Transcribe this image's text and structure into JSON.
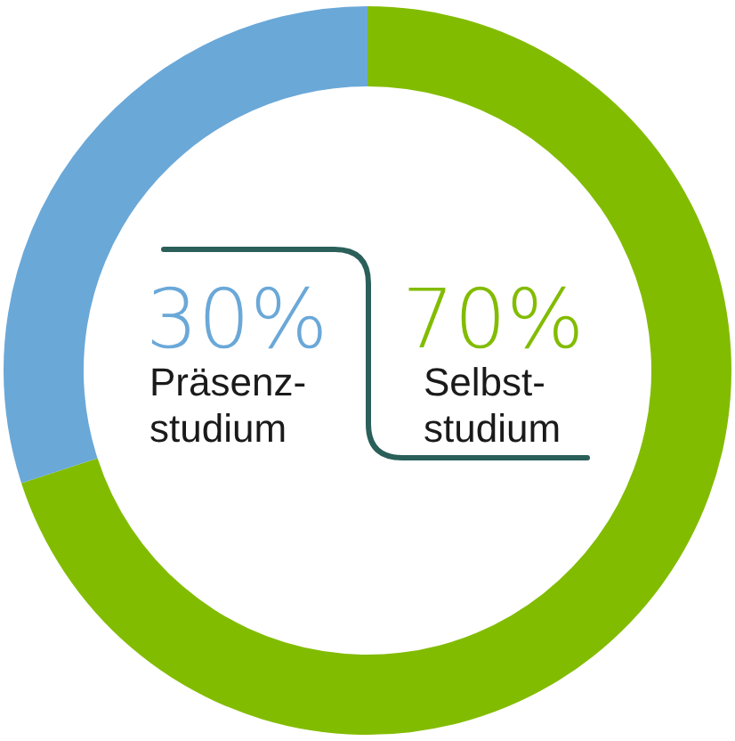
{
  "chart_data": {
    "type": "donut",
    "categories": [
      "Selbst-\nstudium",
      "Präsenz-\nstudium"
    ],
    "values": [
      70,
      30
    ],
    "colors": [
      "#82bc00",
      "#6aa8d8"
    ],
    "value_labels": [
      "70%",
      "30%"
    ],
    "legend": false
  }
}
